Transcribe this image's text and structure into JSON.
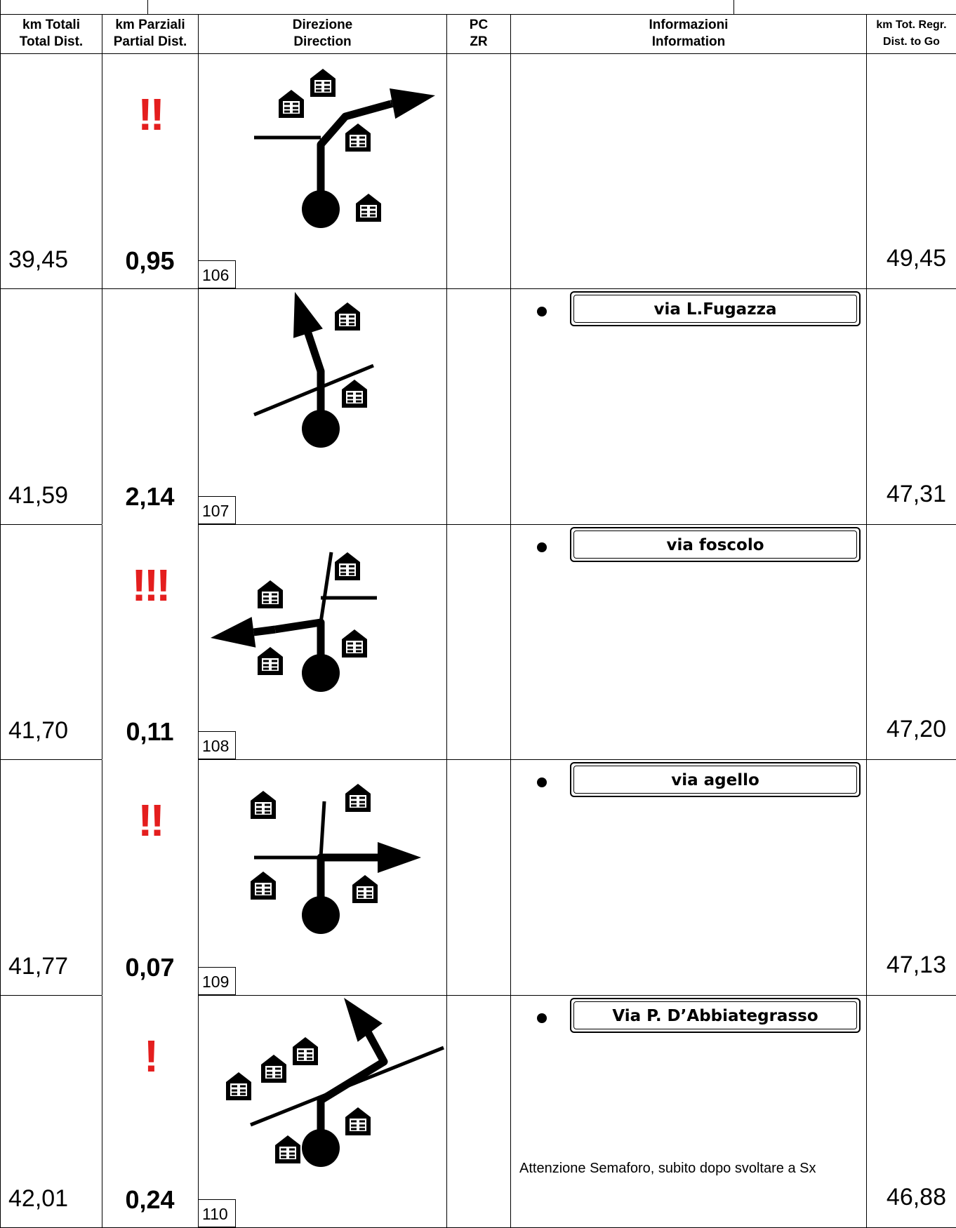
{
  "header": {
    "columns": [
      [
        "km Totali",
        "Total Dist."
      ],
      [
        "km Parziali",
        "Partial Dist."
      ],
      [
        "Direzione",
        "Direction"
      ],
      [
        "PC",
        "ZR"
      ],
      [
        "Informazioni",
        "Information"
      ],
      [
        "km Tot. Regr.",
        "Dist. to Go"
      ]
    ]
  },
  "rows": [
    {
      "total": "39,45",
      "partial": "0,95",
      "warning": "!!",
      "number": "106",
      "street": null,
      "note": null,
      "to_go": "49,45"
    },
    {
      "total": "41,59",
      "partial": "2,14",
      "warning": null,
      "number": "107",
      "street": "via L.Fugazza",
      "note": null,
      "to_go": "47,31"
    },
    {
      "total": "41,70",
      "partial": "0,11",
      "warning": "!!!",
      "number": "108",
      "street": "via foscolo",
      "note": null,
      "to_go": "47,20"
    },
    {
      "total": "41,77",
      "partial": "0,07",
      "warning": "!!",
      "number": "109",
      "street": "via agello",
      "note": null,
      "to_go": "47,13"
    },
    {
      "total": "42,01",
      "partial": "0,24",
      "warning": "!",
      "number": "110",
      "street": "Via P. D’Abbiategrasso",
      "note": "Attenzione Semaforo, subito dopo svoltare a Sx",
      "to_go": "46,88"
    }
  ]
}
